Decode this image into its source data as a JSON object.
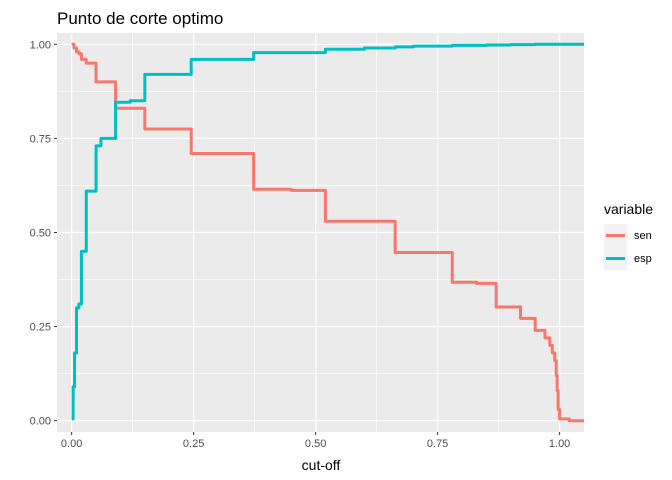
{
  "chart_data": {
    "type": "line",
    "title": "Punto de corte optimo",
    "xlabel": "cut-off",
    "ylabel": "",
    "xlim": [
      -0.03,
      1.05
    ],
    "ylim": [
      -0.03,
      1.03
    ],
    "x_ticks": [
      0.0,
      0.25,
      0.5,
      0.75,
      1.0
    ],
    "x_tick_labels": [
      "0.00",
      "0.25",
      "0.50",
      "0.75",
      "1.00"
    ],
    "y_ticks": [
      0.0,
      0.25,
      0.5,
      0.75,
      1.0
    ],
    "y_tick_labels": [
      "0.00",
      "0.25",
      "0.50",
      "0.75",
      "1.00"
    ],
    "grid": true,
    "legend": {
      "title": "variable",
      "position": "right"
    },
    "series": [
      {
        "name": "sen",
        "color": "#F8766D",
        "step": true,
        "x": [
          0.0,
          0.005,
          0.01,
          0.015,
          0.02,
          0.03,
          0.05,
          0.07,
          0.09,
          0.12,
          0.15,
          0.2,
          0.245,
          0.3,
          0.373,
          0.4,
          0.45,
          0.5,
          0.52,
          0.53,
          0.6,
          0.663,
          0.7,
          0.78,
          0.8,
          0.83,
          0.87,
          0.9,
          0.92,
          0.95,
          0.97,
          0.98,
          0.985,
          0.99,
          0.993,
          0.995,
          0.997,
          1.0,
          1.02,
          1.05
        ],
        "y": [
          1.0,
          0.99,
          0.98,
          0.975,
          0.96,
          0.95,
          0.9,
          0.9,
          0.83,
          0.83,
          0.775,
          0.775,
          0.71,
          0.71,
          0.615,
          0.615,
          0.612,
          0.612,
          0.53,
          0.53,
          0.53,
          0.447,
          0.447,
          0.368,
          0.368,
          0.365,
          0.302,
          0.302,
          0.272,
          0.24,
          0.22,
          0.2,
          0.18,
          0.16,
          0.12,
          0.08,
          0.03,
          0.005,
          0.0,
          0.0
        ]
      },
      {
        "name": "esp",
        "color": "#00BFC4",
        "step": true,
        "x": [
          0.0,
          0.003,
          0.006,
          0.01,
          0.015,
          0.02,
          0.03,
          0.05,
          0.06,
          0.09,
          0.12,
          0.15,
          0.18,
          0.245,
          0.3,
          0.373,
          0.4,
          0.45,
          0.5,
          0.52,
          0.6,
          0.663,
          0.7,
          0.78,
          0.85,
          0.9,
          0.95,
          1.0,
          1.05
        ],
        "y": [
          0.005,
          0.09,
          0.18,
          0.3,
          0.31,
          0.45,
          0.61,
          0.73,
          0.75,
          0.846,
          0.85,
          0.92,
          0.92,
          0.96,
          0.96,
          0.978,
          0.978,
          0.978,
          0.978,
          0.987,
          0.99,
          0.993,
          0.995,
          0.997,
          0.998,
          0.999,
          1.0,
          1.0,
          1.0
        ]
      }
    ]
  }
}
